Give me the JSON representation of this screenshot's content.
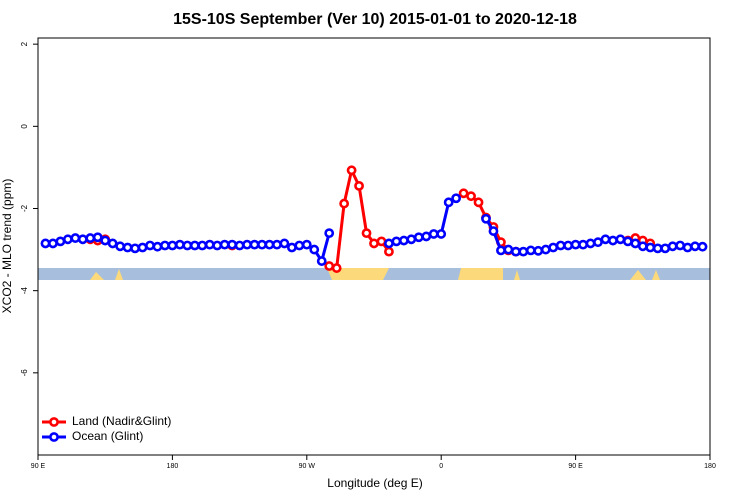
{
  "chart_data": {
    "type": "line",
    "title": "15S-10S September (Ver 10)   2015-01-01 to 2020-12-18",
    "xlabel": "Longitude (deg E)",
    "ylabel": "XCO2 - MLO trend (ppm)",
    "xlim": [
      -270,
      180
    ],
    "xticks": [
      {
        "value": -270,
        "label": "90 E"
      },
      {
        "value": -180,
        "label": "180"
      },
      {
        "value": -90,
        "label": "90 W"
      },
      0,
      {
        "value": 90,
        "label": "90 E"
      },
      180
    ],
    "ylim": [
      -8.0,
      2.15
    ],
    "yticks": [
      -6,
      -4,
      -2,
      0,
      2
    ],
    "legend": "bottom-left",
    "x": [
      -265,
      -260,
      -255,
      -250,
      -245,
      -240,
      -235,
      -230,
      -225,
      -220,
      -215,
      -210,
      -205,
      -200,
      -195,
      -190,
      -185,
      -180,
      -175,
      -170,
      -165,
      -160,
      -155,
      -150,
      -145,
      -140,
      -135,
      -130,
      -125,
      -120,
      -115,
      -110,
      -105,
      -100,
      -95,
      -90,
      -85,
      -80,
      -75,
      -70,
      -65,
      -60,
      -55,
      -50,
      -45,
      -40,
      -35,
      -30,
      -25,
      -20,
      -15,
      -10,
      -5,
      0,
      5,
      10,
      15,
      20,
      25,
      30,
      35,
      40,
      45,
      50,
      55,
      60,
      65,
      70,
      75,
      80,
      85,
      90,
      95,
      100,
      105,
      110,
      115,
      120,
      125,
      130,
      135,
      140,
      145,
      150,
      155,
      160,
      165,
      170,
      175
    ],
    "series": [
      {
        "name": "Land (Nadir&Glint)",
        "color": "#ff0000",
        "values": [
          null,
          null,
          null,
          null,
          null,
          null,
          -2.75,
          -2.78,
          -2.75,
          null,
          null,
          null,
          null,
          null,
          null,
          null,
          null,
          null,
          null,
          null,
          null,
          null,
          null,
          null,
          null,
          -2.9,
          null,
          null,
          null,
          null,
          null,
          null,
          null,
          null,
          null,
          null,
          null,
          null,
          -3.4,
          -3.45,
          -1.88,
          -1.07,
          -1.45,
          -2.6,
          -2.85,
          -2.8,
          -3.05,
          null,
          null,
          null,
          null,
          null,
          null,
          null,
          null,
          null,
          -1.63,
          -1.7,
          -1.85,
          -2.22,
          -2.45,
          -2.82,
          -3.02,
          -3.05,
          null,
          null,
          null,
          null,
          null,
          null,
          null,
          null,
          null,
          null,
          null,
          null,
          null,
          null,
          -2.78,
          -2.72,
          -2.78,
          -2.85,
          null,
          null,
          null,
          null,
          null,
          null,
          null
        ]
      },
      {
        "name": "Ocean (Glint)",
        "color": "#0000ff",
        "values": [
          -2.85,
          -2.85,
          -2.8,
          -2.75,
          -2.72,
          -2.75,
          -2.72,
          -2.7,
          -2.78,
          -2.85,
          -2.92,
          -2.95,
          -2.97,
          -2.95,
          -2.9,
          -2.93,
          -2.9,
          -2.9,
          -2.88,
          -2.9,
          -2.9,
          -2.9,
          -2.88,
          -2.9,
          -2.88,
          -2.88,
          -2.9,
          -2.88,
          -2.88,
          -2.88,
          -2.88,
          -2.88,
          -2.85,
          -2.95,
          -2.9,
          -2.88,
          -3.0,
          -3.28,
          -2.6,
          null,
          null,
          null,
          null,
          null,
          null,
          null,
          -2.85,
          -2.8,
          -2.78,
          -2.75,
          -2.7,
          -2.68,
          -2.62,
          -2.62,
          -1.85,
          -1.75,
          null,
          null,
          null,
          -2.25,
          -2.55,
          -3.02,
          -3.0,
          -3.05,
          -3.05,
          -3.02,
          -3.03,
          -3.0,
          -2.95,
          -2.9,
          -2.9,
          -2.88,
          -2.88,
          -2.85,
          -2.82,
          -2.75,
          -2.78,
          -2.75,
          -2.8,
          -2.85,
          -2.92,
          -2.95,
          -2.97,
          -2.97,
          -2.92,
          -2.9,
          -2.95,
          -2.92,
          -2.93
        ]
      }
    ]
  }
}
